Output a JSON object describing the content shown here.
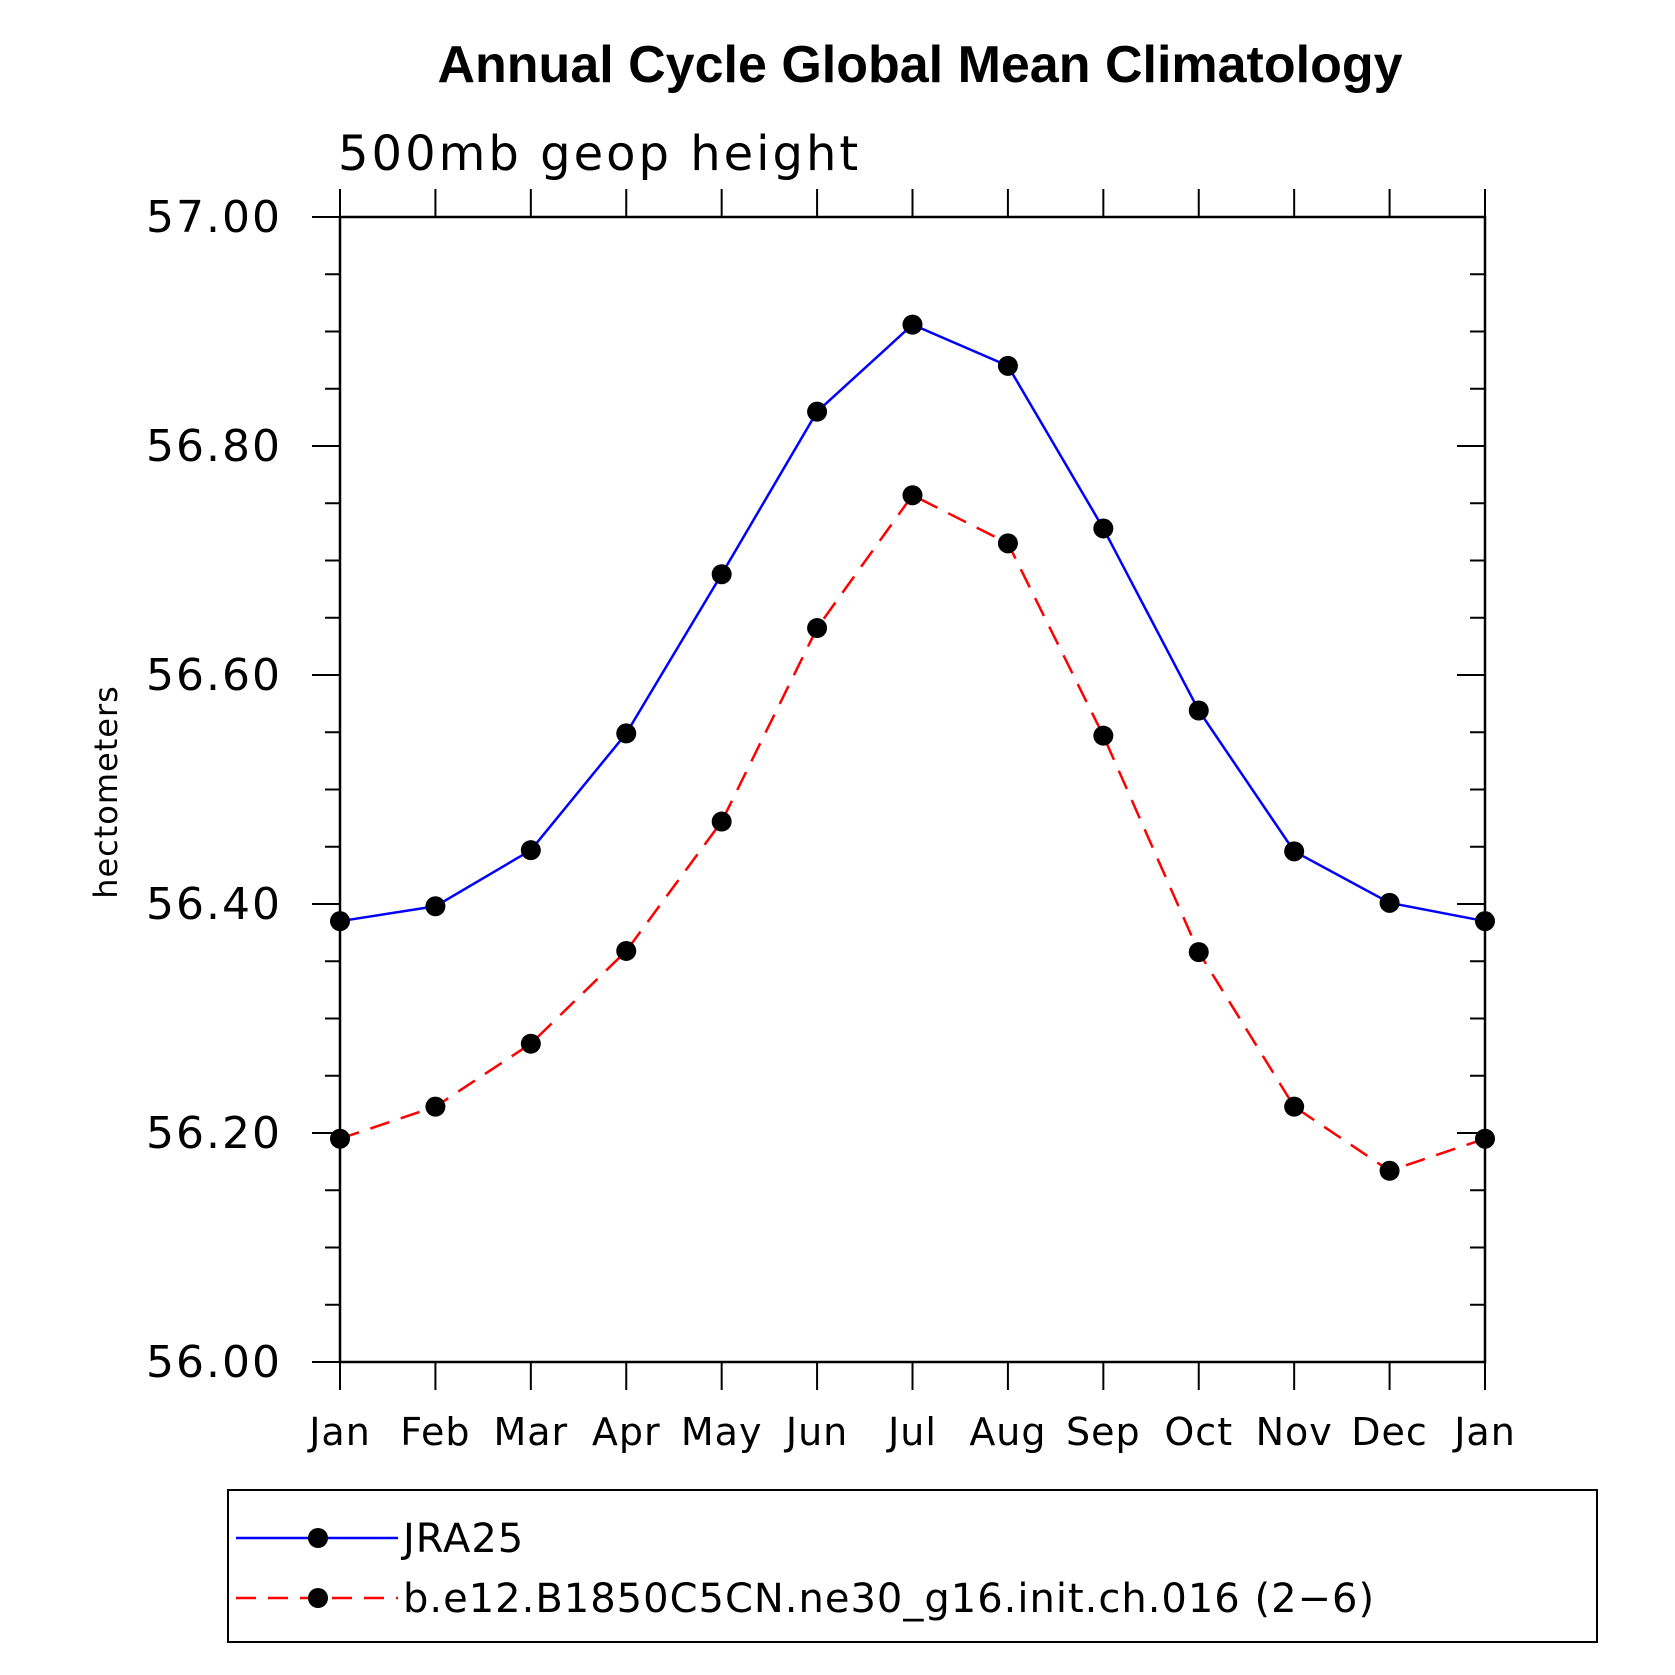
{
  "chart_data": {
    "type": "line",
    "title": "Annual Cycle Global Mean Climatology",
    "subtitle": "500mb geop height",
    "xlabel": "",
    "ylabel": "hectometers",
    "categories": [
      "Jan",
      "Feb",
      "Mar",
      "Apr",
      "May",
      "Jun",
      "Jul",
      "Aug",
      "Sep",
      "Oct",
      "Nov",
      "Dec",
      "Jan"
    ],
    "ylim": [
      56.0,
      57.0
    ],
    "y_major_ticks": [
      56.0,
      56.2,
      56.4,
      56.6,
      56.8,
      57.0
    ],
    "y_tick_labels": [
      "56.00",
      "56.20",
      "56.40",
      "56.60",
      "56.80",
      "57.00"
    ],
    "y_minor_step": 0.05,
    "grid": false,
    "legend_position": "bottom",
    "series": [
      {
        "name": "JRA25",
        "color": "#0000ff",
        "line_style": "solid",
        "marker": "filled-circle",
        "values": [
          56.385,
          56.398,
          56.447,
          56.549,
          56.688,
          56.83,
          56.906,
          56.87,
          56.728,
          56.569,
          56.446,
          56.401,
          56.385
        ]
      },
      {
        "name": "b.e12.B1850C5CN.ne30_g16.init.ch.016 (2−6)",
        "color": "#ff0000",
        "line_style": "dashed",
        "marker": "filled-circle",
        "values": [
          56.195,
          56.223,
          56.278,
          56.359,
          56.472,
          56.641,
          56.757,
          56.715,
          56.547,
          56.358,
          56.223,
          56.167,
          56.195
        ]
      }
    ]
  }
}
